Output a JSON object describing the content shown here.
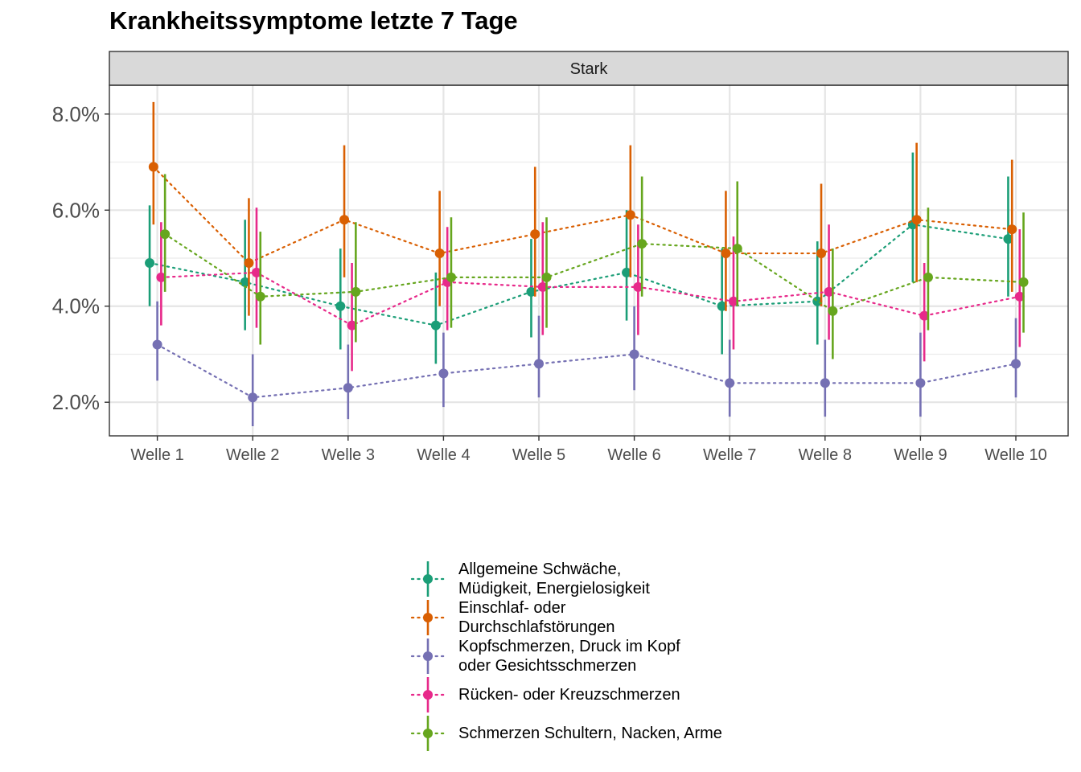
{
  "chart_data": {
    "type": "line",
    "title": "Krankheitssymptome letzte 7 Tage",
    "facet": "Stark",
    "categories": [
      "Welle 1",
      "Welle 2",
      "Welle 3",
      "Welle 4",
      "Welle 5",
      "Welle 6",
      "Welle 7",
      "Welle 8",
      "Welle 9",
      "Welle 10"
    ],
    "y_ticks": [
      "2.0%",
      "4.0%",
      "6.0%",
      "8.0%"
    ],
    "ylim": [
      1.3,
      8.6
    ],
    "grid": true,
    "legend_position": "bottom",
    "series": [
      {
        "name": "Allgemeine Schwäche,\nMüdigkeit, Energielosigkeit",
        "color": "#1b9e77",
        "values": [
          4.9,
          4.5,
          4.0,
          3.6,
          4.3,
          4.7,
          4.0,
          4.1,
          5.7,
          5.4
        ],
        "lower": [
          4.0,
          3.5,
          3.1,
          2.8,
          3.35,
          3.7,
          3.0,
          3.2,
          4.5,
          4.2
        ],
        "upper": [
          6.1,
          5.8,
          5.2,
          4.7,
          5.4,
          6.0,
          5.2,
          5.35,
          7.2,
          6.7
        ]
      },
      {
        "name": "Einschlaf- oder\nDurchschlafstörungen",
        "color": "#d95f02",
        "values": [
          6.9,
          4.9,
          5.8,
          5.1,
          5.5,
          5.9,
          5.1,
          5.1,
          5.8,
          5.6
        ],
        "lower": [
          5.7,
          3.8,
          4.6,
          4.0,
          4.2,
          4.6,
          3.9,
          4.0,
          4.5,
          4.3
        ],
        "upper": [
          8.25,
          6.25,
          7.35,
          6.4,
          6.9,
          7.35,
          6.4,
          6.55,
          7.4,
          7.05
        ]
      },
      {
        "name": "Kopfschmerzen, Druck im Kopf\noder Gesichtsschmerzen",
        "color": "#7570b3",
        "values": [
          3.2,
          2.1,
          2.3,
          2.6,
          2.8,
          3.0,
          2.4,
          2.4,
          2.4,
          2.8
        ],
        "lower": [
          2.45,
          1.5,
          1.65,
          1.9,
          2.1,
          2.25,
          1.7,
          1.7,
          1.7,
          2.1
        ],
        "upper": [
          4.1,
          3.0,
          3.2,
          3.45,
          3.8,
          4.0,
          3.3,
          3.3,
          3.45,
          3.75
        ]
      },
      {
        "name": "Rücken- oder Kreuzschmerzen",
        "color": "#e7298a",
        "values": [
          4.6,
          4.7,
          3.6,
          4.5,
          4.4,
          4.4,
          4.1,
          4.3,
          3.8,
          4.2
        ],
        "lower": [
          3.6,
          3.55,
          2.65,
          3.5,
          3.4,
          3.4,
          3.1,
          3.3,
          2.85,
          3.15
        ],
        "upper": [
          5.75,
          6.05,
          4.9,
          5.65,
          5.75,
          5.7,
          5.45,
          5.7,
          4.9,
          5.6
        ]
      },
      {
        "name": "Schmerzen Schultern, Nacken, Arme",
        "color": "#66a61e",
        "values": [
          5.5,
          4.2,
          4.3,
          4.6,
          4.6,
          5.3,
          5.2,
          3.9,
          4.6,
          4.5
        ],
        "lower": [
          4.3,
          3.2,
          3.25,
          3.55,
          3.55,
          4.2,
          4.0,
          2.9,
          3.5,
          3.45
        ],
        "upper": [
          6.75,
          5.55,
          5.75,
          5.85,
          5.85,
          6.7,
          6.6,
          5.2,
          6.05,
          5.95
        ]
      }
    ]
  }
}
